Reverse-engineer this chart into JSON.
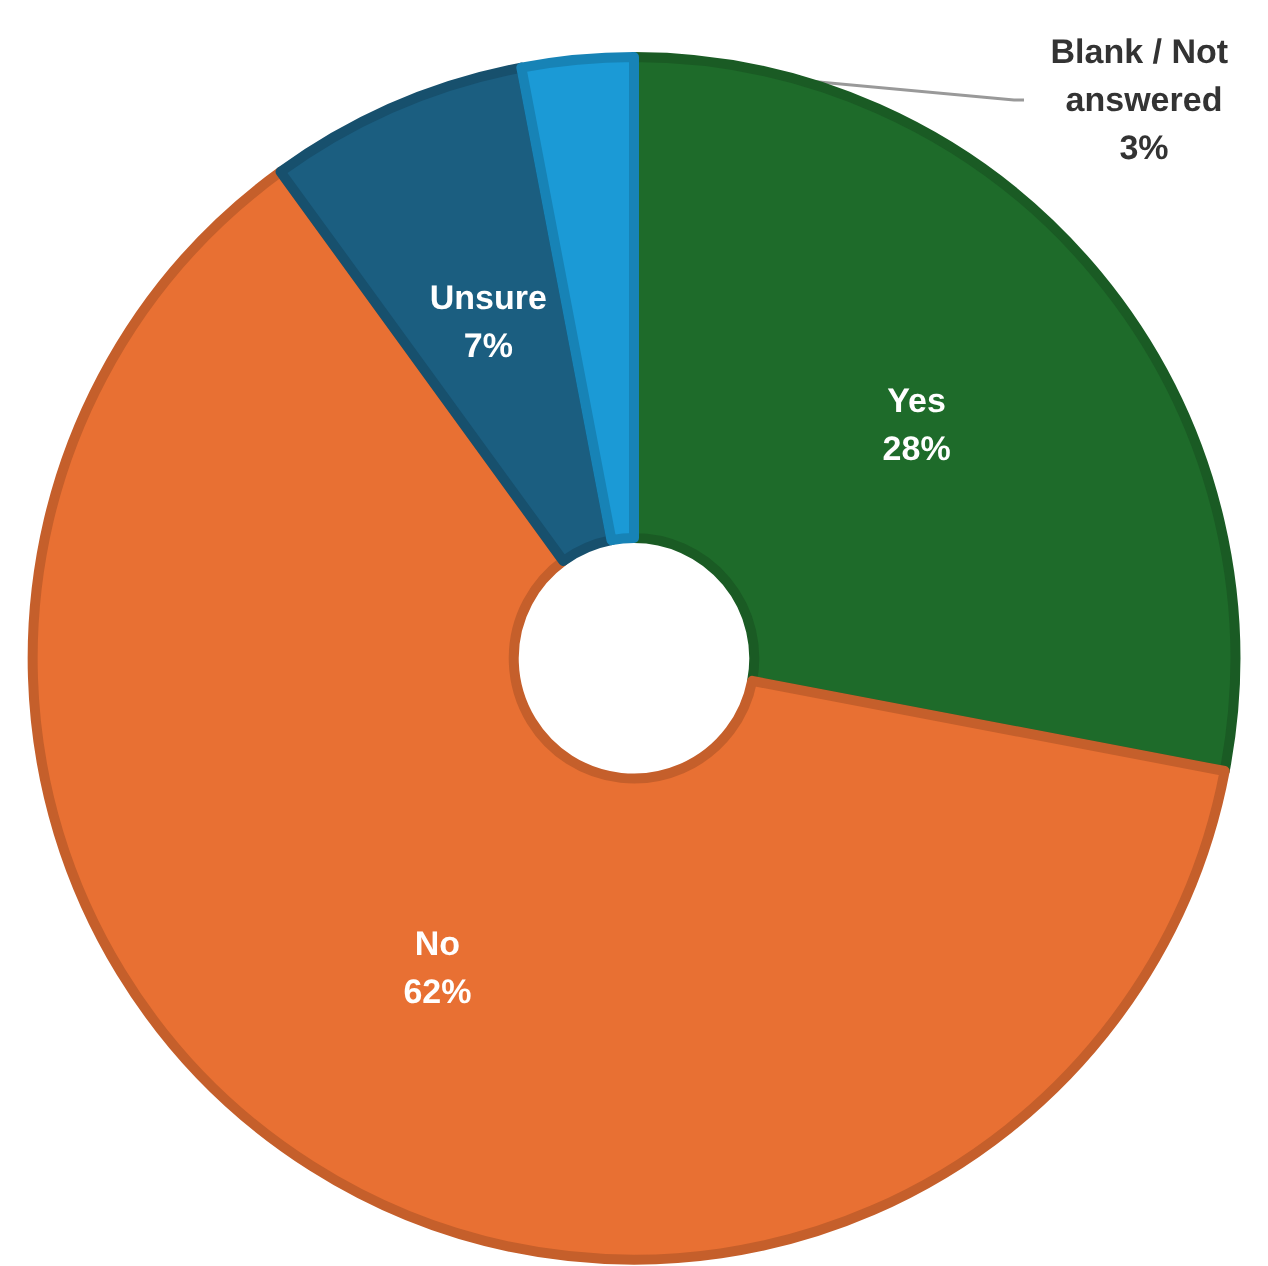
{
  "chart_data": {
    "type": "donut",
    "categories": [
      "Yes",
      "No",
      "Unsure",
      "Blank / Not answered"
    ],
    "values": [
      28,
      62,
      7,
      3
    ],
    "colors": [
      "#1e6b2a",
      "#e87033",
      "#1b5e80",
      "#1b9ad6"
    ],
    "value_labels": [
      "28%",
      "62%",
      "7%",
      "3%"
    ]
  }
}
